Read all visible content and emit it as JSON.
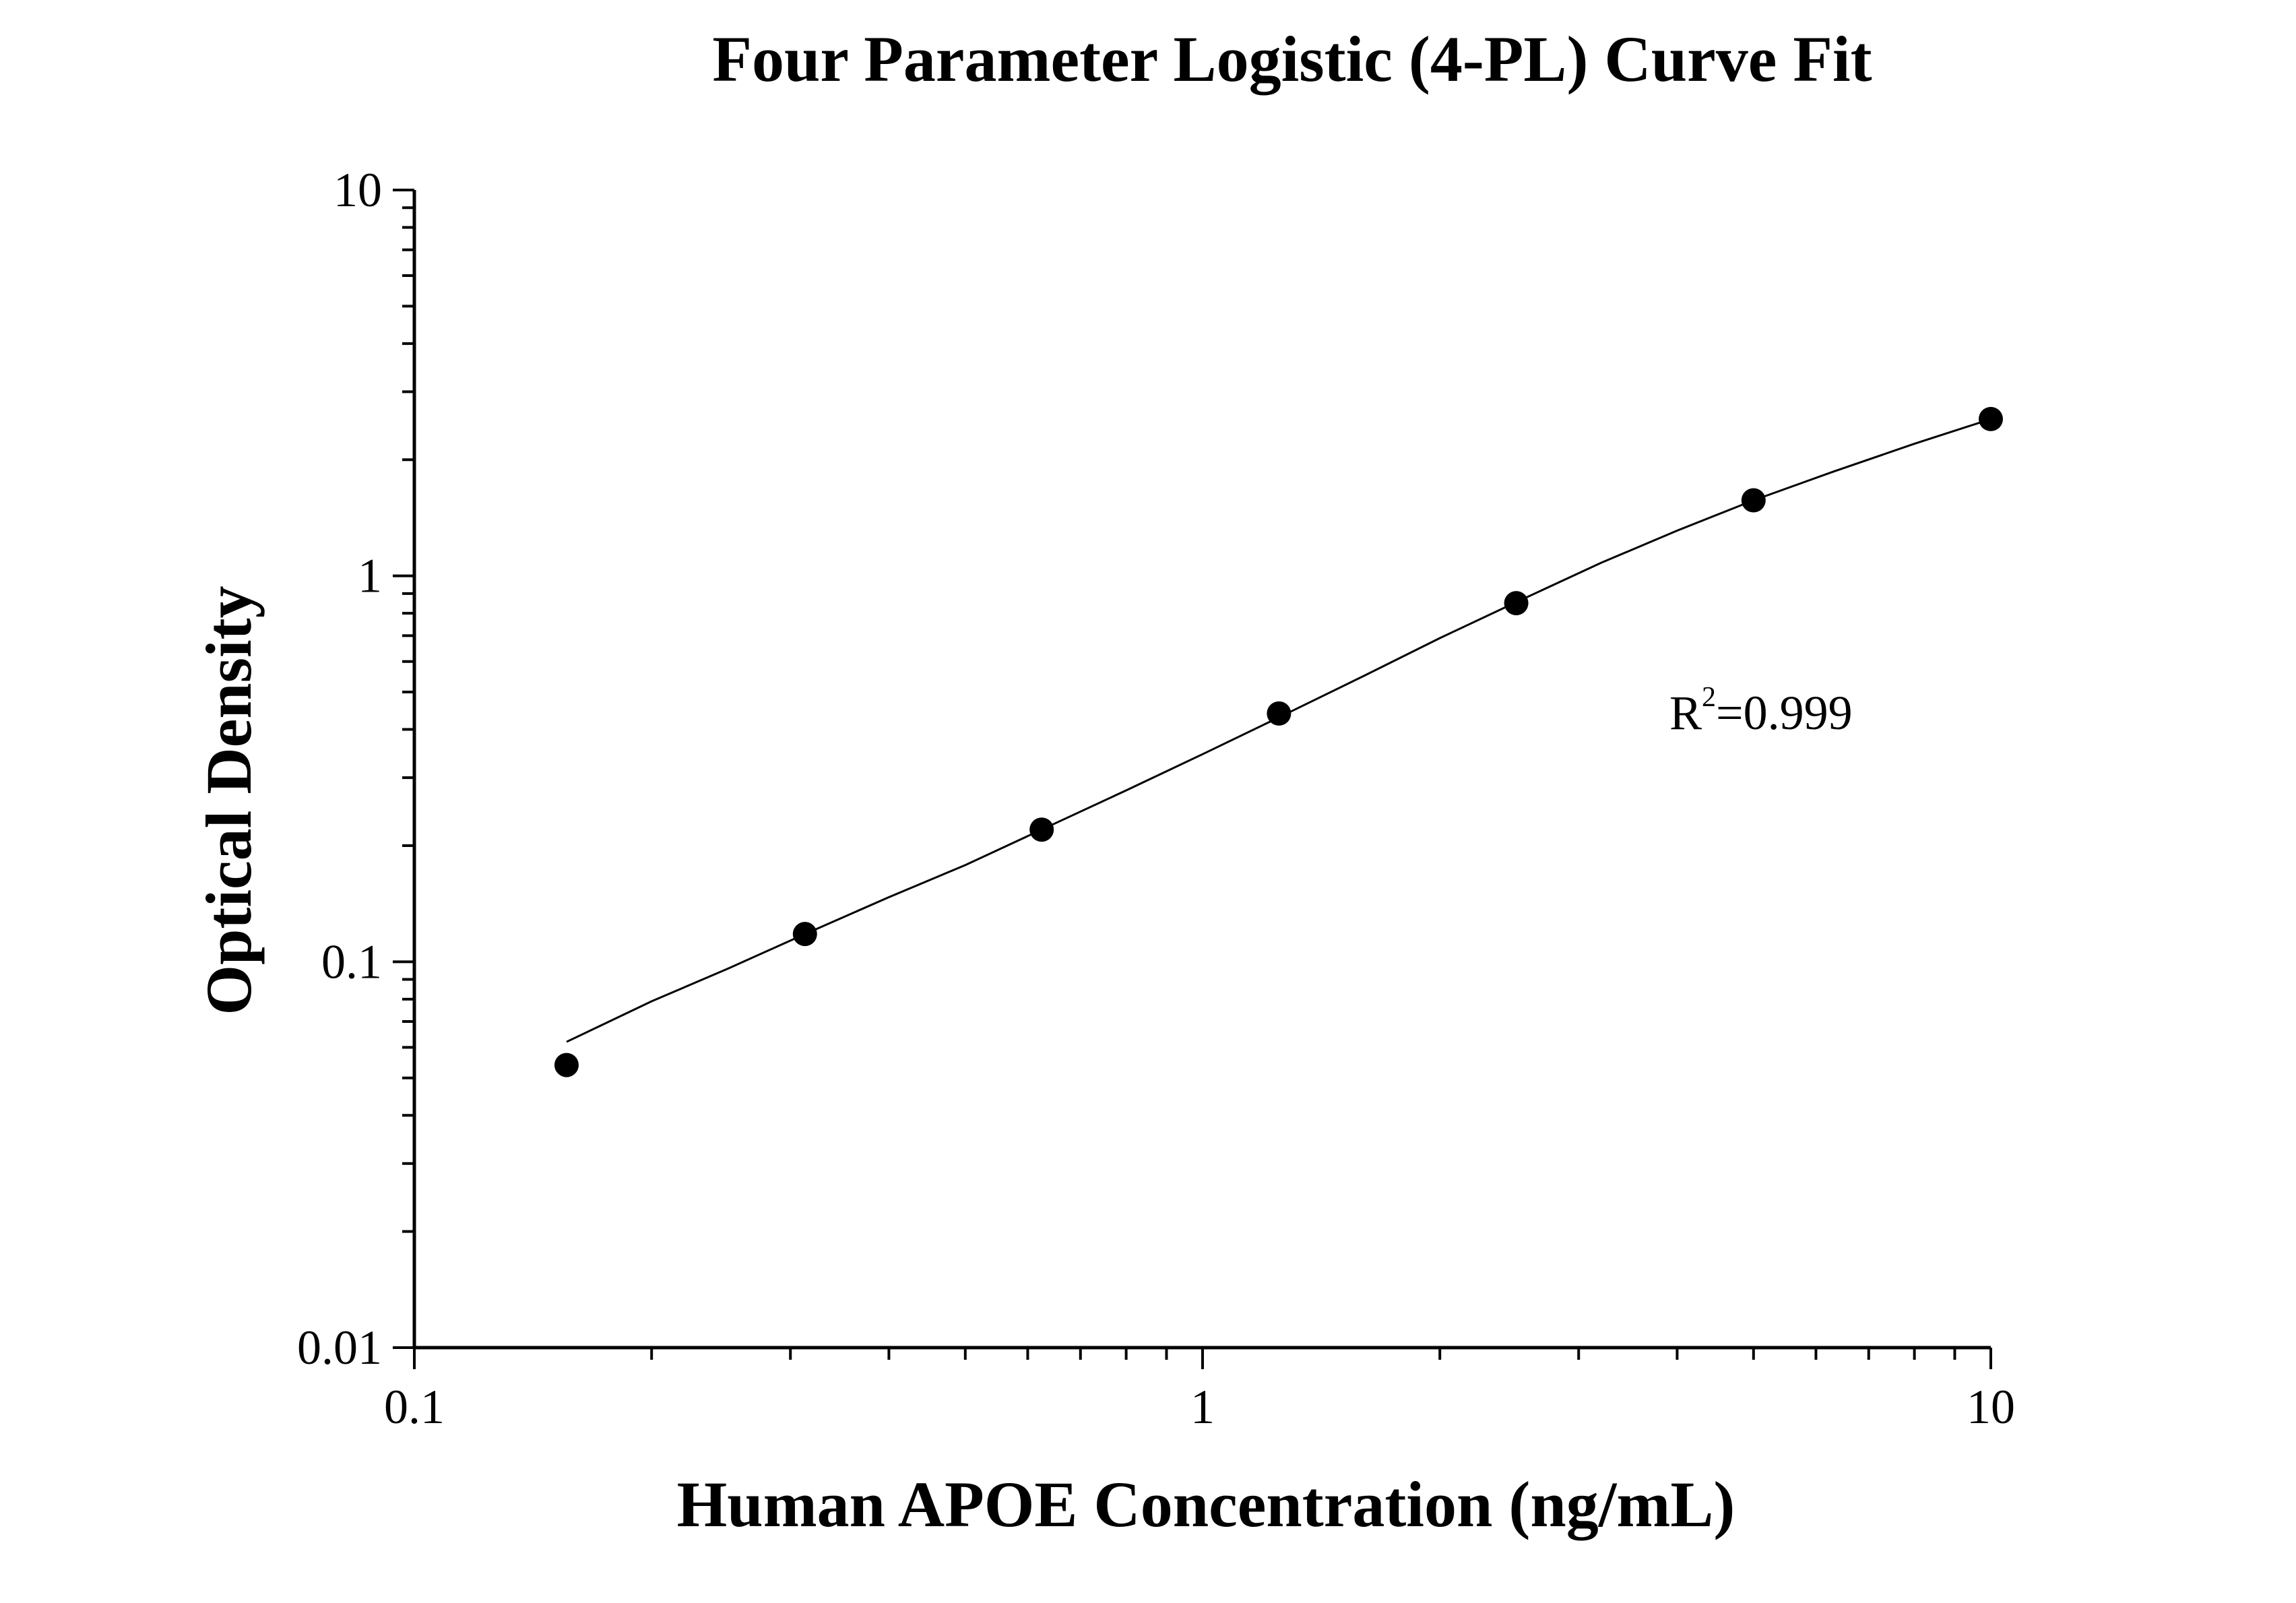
{
  "chart_data": {
    "type": "scatter",
    "title": "Four Parameter Logistic (4-PL) Curve Fit",
    "xlabel": "Human APOE Concentration (ng/mL)",
    "ylabel": "Optical Density",
    "x_scale": "log",
    "y_scale": "log",
    "xlim": [
      0.1,
      10
    ],
    "ylim": [
      0.01,
      10
    ],
    "x_ticks": [
      {
        "value": 0.1,
        "label": "0.1"
      },
      {
        "value": 1,
        "label": "1"
      },
      {
        "value": 10,
        "label": "10"
      }
    ],
    "y_ticks": [
      {
        "value": 0.01,
        "label": "0.01"
      },
      {
        "value": 0.1,
        "label": "0.1"
      },
      {
        "value": 1,
        "label": "1"
      },
      {
        "value": 10,
        "label": "10"
      }
    ],
    "grid": false,
    "points": {
      "x": [
        0.156,
        0.313,
        0.625,
        1.25,
        2.5,
        5,
        10
      ],
      "y": [
        0.054,
        0.118,
        0.22,
        0.44,
        0.85,
        1.57,
        2.55
      ]
    },
    "fit_curve": {
      "x": [
        0.156,
        0.2,
        0.25,
        0.313,
        0.4,
        0.5,
        0.625,
        0.8,
        1.0,
        1.25,
        1.6,
        2.0,
        2.5,
        3.2,
        4.0,
        5.0,
        6.3,
        8.0,
        10.0
      ],
      "y": [
        0.062,
        0.079,
        0.096,
        0.118,
        0.147,
        0.178,
        0.22,
        0.278,
        0.345,
        0.43,
        0.55,
        0.69,
        0.855,
        1.08,
        1.31,
        1.57,
        1.86,
        2.2,
        2.55
      ]
    },
    "annotation": {
      "base": "R",
      "superscript": "2",
      "rest": "=0.999"
    }
  },
  "colors": {
    "marker": "#000000",
    "line": "#000000",
    "axis": "#000000"
  }
}
